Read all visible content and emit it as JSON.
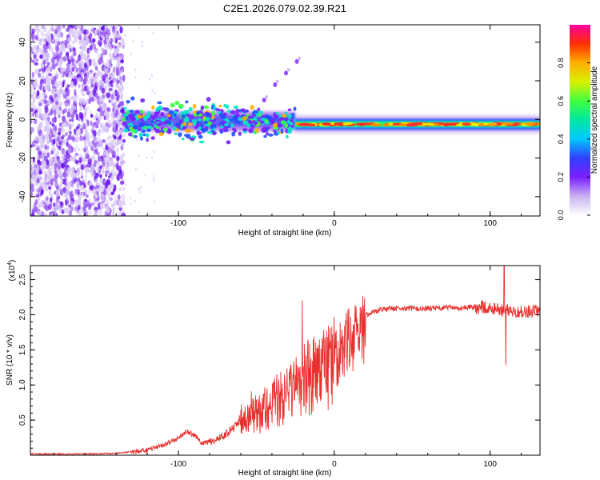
{
  "title": "C2E1.2026.079.02.39.R21",
  "colors": {
    "signal": "#e8312f",
    "axis": "#000000",
    "background": "#ffffff"
  },
  "chart_data": [
    {
      "type": "heatmap",
      "title": "C2E1.2026.079.02.39.R21",
      "xlabel": "Height of straight line (km)",
      "ylabel": "Frequency (Hz)",
      "xlim": [
        -195,
        132
      ],
      "ylim": [
        -50,
        49
      ],
      "xticks": [
        -100,
        0,
        100
      ],
      "xtick_labels": [
        "-100",
        "0",
        "100"
      ],
      "yticks": [
        40,
        20,
        0,
        -20,
        -40
      ],
      "ytick_labels": [
        "40",
        "20",
        "0",
        "-20",
        "-40"
      ],
      "colorbar": {
        "label": "Normalized spectral amplitude",
        "range": [
          0,
          1
        ],
        "ticks": [
          0.0,
          0.2,
          0.4,
          0.6,
          0.8
        ],
        "tick_labels": [
          "0.0",
          "0.2",
          "0.4",
          "0.6",
          "0.8"
        ],
        "colormap": [
          "#ffffff",
          "#c8b0f0",
          "#7a1fff",
          "#3040ff",
          "#00c8ff",
          "#00e8a0",
          "#40ff40",
          "#d8f000",
          "#ffb000",
          "#ff3000",
          "#ff00a0"
        ]
      },
      "regions": [
        {
          "x": [
            -195,
            -135
          ],
          "freq": [
            -50,
            49
          ],
          "pattern": "scattered-noise",
          "amplitude": 0.2
        },
        {
          "x": [
            -135,
            -25
          ],
          "freq": [
            -10,
            8
          ],
          "pattern": "dotted-band",
          "amplitude": 0.45
        },
        {
          "x": [
            -25,
            132
          ],
          "freq": [
            -4,
            2
          ],
          "pattern": "continuous-band",
          "center": -2.5,
          "amplitude": 0.9
        }
      ],
      "streak": [
        {
          "x": -45,
          "freq": 10
        },
        {
          "x": -38,
          "freq": 18
        },
        {
          "x": -31,
          "freq": 24
        },
        {
          "x": -24,
          "freq": 30
        }
      ]
    },
    {
      "type": "line",
      "xlabel": "Height of straight line (km)",
      "ylabel": "SNR (10 * v/v)",
      "y_multiplier": "(x10",
      "y_multiplier_exp": "4",
      "y_multiplier_close": ")",
      "xlim": [
        -195,
        132
      ],
      "ylim": [
        0,
        2.7
      ],
      "xticks": [
        -100,
        0,
        100
      ],
      "xtick_labels": [
        "-100",
        "0",
        "100"
      ],
      "yticks": [
        0.5,
        1.0,
        1.5,
        2.0,
        2.5
      ],
      "ytick_labels": [
        "0.5",
        "1.0",
        "1.5",
        "2.0",
        "2.5"
      ],
      "series": [
        {
          "name": "SNR",
          "color": "#e8312f",
          "x": [
            -195,
            -160,
            -140,
            -130,
            -120,
            -110,
            -100,
            -95,
            -90,
            -85,
            -80,
            -75,
            -70,
            -65,
            -60,
            -55,
            -50,
            -45,
            -40,
            -35,
            -30,
            -25,
            -20,
            -15,
            -10,
            -5,
            0,
            5,
            10,
            15,
            20,
            25,
            30,
            35,
            40,
            50,
            60,
            70,
            80,
            90,
            95,
            100,
            105,
            108,
            110,
            112,
            115,
            120,
            125,
            132
          ],
          "y": [
            0.02,
            0.02,
            0.03,
            0.05,
            0.08,
            0.15,
            0.25,
            0.35,
            0.3,
            0.18,
            0.2,
            0.25,
            0.3,
            0.4,
            0.55,
            0.7,
            0.65,
            0.75,
            0.85,
            0.9,
            1.0,
            1.05,
            1.2,
            1.25,
            1.3,
            1.4,
            1.5,
            1.6,
            1.75,
            1.9,
            2.0,
            2.05,
            2.08,
            2.1,
            2.1,
            2.1,
            2.1,
            2.11,
            2.11,
            2.12,
            2.13,
            2.12,
            2.1,
            2.08,
            2.09,
            2.08,
            2.07,
            2.06,
            2.07,
            2.08
          ]
        }
      ],
      "annotations": [
        {
          "x": -20,
          "y": 2.2,
          "text": ""
        }
      ]
    }
  ]
}
